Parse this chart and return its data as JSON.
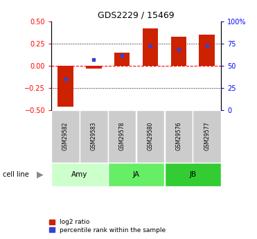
{
  "title": "GDS2229 / 15469",
  "samples": [
    "GSM29582",
    "GSM29583",
    "GSM29578",
    "GSM29580",
    "GSM29576",
    "GSM29577"
  ],
  "log2_ratio": [
    -0.46,
    -0.03,
    0.15,
    0.42,
    0.33,
    0.35
  ],
  "percentile_rank": [
    35,
    57,
    62,
    73,
    68,
    73
  ],
  "groups": [
    {
      "label": "Amy",
      "indices": [
        0,
        1
      ],
      "color": "#ccffcc"
    },
    {
      "label": "JA",
      "indices": [
        2,
        3
      ],
      "color": "#66ee66"
    },
    {
      "label": "JB",
      "indices": [
        4,
        5
      ],
      "color": "#33cc33"
    }
  ],
  "bar_color": "#cc2200",
  "blue_color": "#3344cc",
  "ylim": [
    -0.5,
    0.5
  ],
  "yticks_left": [
    -0.5,
    -0.25,
    0.0,
    0.25,
    0.5
  ],
  "yticks_right_vals": [
    0,
    25,
    50,
    75,
    100
  ],
  "yticks_right_labels": [
    "0",
    "25",
    "50",
    "75",
    "100%"
  ],
  "sample_bg_color": "#cccccc",
  "annotation_row_label": "cell line",
  "legend_log2": "log2 ratio",
  "legend_pct": "percentile rank within the sample"
}
